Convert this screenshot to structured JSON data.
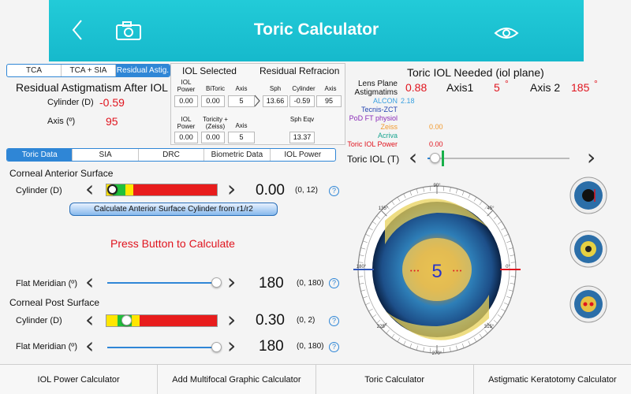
{
  "header": {
    "title": "Toric Calculator"
  },
  "mode_tabs": [
    "TCA",
    "TCA + SIA",
    "Residual Astig."
  ],
  "residual": {
    "title": "Residual Astigmatism After IOL",
    "cyl_label": "Cylinder (D)",
    "cyl_value": "-0.59",
    "axis_label": "Axis (º)",
    "axis_value": "95"
  },
  "iol_selected": {
    "title": "IOL Selected",
    "residual_title": "Residual Refracion",
    "h_power": "IOL Power",
    "h_bitoric": "BiToric",
    "h_axis": "Axis",
    "v_power": "0.00",
    "v_bitoric": "0.00",
    "v_axis": "5",
    "h_sph": "Sph",
    "h_cyl": "Cylinder",
    "h_axis2": "Axis",
    "v_sph": "13.66",
    "v_cyl": "-0.59",
    "v_axis2": "95",
    "h_power2": "IOL Power",
    "h_toricity": "Toricity + (Zeiss)",
    "h_axis3": "Axis",
    "v_power2": "0.00",
    "v_toricity": "0.00",
    "v_axis3": "5",
    "h_spheqv": "Sph Eqv",
    "v_spheqv": "13.37"
  },
  "toric_needed": {
    "title": "Toric IOL Needed (iol plane)",
    "lens_label": "Lens Plane Astigmatims",
    "lens_value": "0.88",
    "axis1_label": "Axis1",
    "axis1_value": "5",
    "axis2_label": "Axis 2",
    "axis2_value": "185",
    "deg": "°"
  },
  "brands": [
    {
      "name": "ALCON",
      "value": "2.18",
      "color": "#3aa0e0"
    },
    {
      "name": "Tecnis-ZCT",
      "value": "",
      "color": "#2544b0"
    },
    {
      "name": "PoD FT physiol",
      "value": "",
      "color": "#8a2bb8"
    },
    {
      "name": "Zeiss",
      "value": "0.00",
      "color": "#f29a2e"
    },
    {
      "name": "Acriva",
      "value": "",
      "color": "#19a590"
    },
    {
      "name": "Toric IOL Power",
      "value": "0.00",
      "color": "#e0141e"
    }
  ],
  "toric_slider": {
    "label": "Toric IOL (T)",
    "level": 0.05
  },
  "data_tabs": [
    "Toric Data",
    "SIA",
    "DRC",
    "Biometric Data",
    "IOL Power"
  ],
  "anterior": {
    "title": "Corneal Anterior Surface",
    "cyl_label": "Cylinder (D)",
    "cyl_value": "0.00",
    "cyl_range": "(0, 12)",
    "calc_button": "Calculate Anterior Surface Cylinder from r1/r2",
    "press": "Press Button to Calculate",
    "flat_label": "Flat Meridian (º)",
    "flat_value": "180",
    "flat_range": "(0, 180)",
    "flat_level": 1.0
  },
  "posterior": {
    "title": "Corneal Post Surface",
    "cyl_label": "Cylinder (D)",
    "cyl_value": "0.30",
    "cyl_range": "(0, 2)",
    "flat_label": "Flat Meridian (º)",
    "flat_value": "180",
    "flat_range": "(0, 180)",
    "flat_level": 1.0
  },
  "eye": {
    "center_value": "5",
    "degrees": [
      "90°",
      "45°",
      "0°",
      "315°",
      "270°",
      "225°",
      "180°",
      "135°"
    ]
  },
  "help": "?",
  "bottom_tabs": [
    "IOL Power Calculator",
    "Add Multifocal Graphic Calculator",
    "Toric Calculator",
    "Astigmatic Keratotomy Calculator"
  ]
}
